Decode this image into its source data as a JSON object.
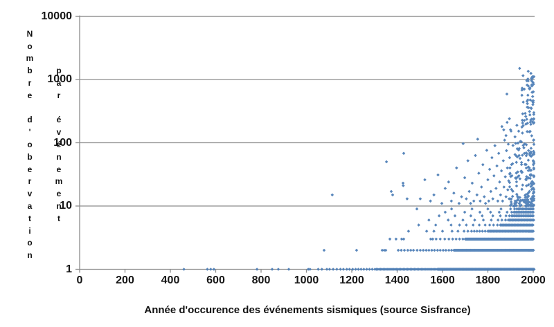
{
  "chart_data": {
    "type": "scatter",
    "title": "",
    "xlabel": "Année d'occurence des événements sismiques (source Sisfrance)",
    "ylabel": "Nombre d'obervation par événement",
    "ylabel_columns": [
      "Nombre d'obervation",
      "par événement"
    ],
    "x_ticks": [
      0,
      200,
      400,
      600,
      800,
      1000,
      1200,
      1400,
      1600,
      1800,
      2000
    ],
    "y_ticks": [
      1,
      10,
      100,
      1000,
      10000
    ],
    "xlim": [
      0,
      2000
    ],
    "ylim": [
      1,
      10000
    ],
    "y_scale": "log10",
    "grid": "horizontal",
    "legend": "none",
    "marker": {
      "shape": "diamond",
      "size": 4.6
    },
    "marker_color": "#4a7cb5",
    "grid_color": "#8c8c8c",
    "axis_color": "#8c8c8c",
    "text_color": "#151515",
    "integer_rows": [
      {
        "value": 1,
        "sparse": [
          460,
          563,
          578,
          592,
          782,
          849,
          876,
          922,
          1008,
          1016,
          1052,
          1068,
          1090,
          1102,
          1118,
          1134,
          1150,
          1163,
          1178,
          1190,
          1204,
          1217,
          1229,
          1241,
          1253,
          1266,
          1278,
          1290,
          1302
        ],
        "dense": [
          {
            "from": 1308,
            "to": 1578,
            "step": 6
          },
          {
            "from": 1580,
            "to": 2004,
            "step": 2
          }
        ]
      },
      {
        "value": 2,
        "sparse": [
          1078,
          1221,
          1334,
          1343,
          1350,
          1405,
          1418,
          1432,
          1447,
          1460,
          1472,
          1488,
          1502,
          1515,
          1528,
          1540,
          1553,
          1565,
          1578,
          1590,
          1603,
          1615,
          1628,
          1640
        ],
        "dense": [
          {
            "from": 1650,
            "to": 2002,
            "step": 3
          }
        ]
      },
      {
        "value": 3,
        "sparse": [
          1368,
          1395,
          1420,
          1429,
          1548,
          1557,
          1572,
          1590,
          1610,
          1628,
          1645,
          1660,
          1675,
          1690
        ],
        "dense": [
          {
            "from": 1700,
            "to": 2002,
            "step": 3
          }
        ]
      },
      {
        "value": 4,
        "sparse": [
          1450,
          1530,
          1562,
          1600,
          1642,
          1668,
          1695,
          1712,
          1728,
          1740,
          1752,
          1764,
          1776,
          1788
        ],
        "dense": [
          {
            "from": 1800,
            "to": 2002,
            "step": 4
          }
        ]
      },
      {
        "value": 5,
        "sparse": [
          1495,
          1570,
          1638,
          1675,
          1705,
          1735,
          1762,
          1788,
          1808,
          1825,
          1842
        ],
        "dense": [
          {
            "from": 1855,
            "to": 2002,
            "step": 4
          }
        ]
      },
      {
        "value": 6,
        "sparse": [
          1540,
          1625,
          1690,
          1742,
          1780,
          1815,
          1845,
          1862,
          1878
        ],
        "dense": [
          {
            "from": 1890,
            "to": 2002,
            "step": 4
          }
        ]
      },
      {
        "value": 7,
        "sparse": [
          1585,
          1655,
          1725,
          1775,
          1822,
          1855,
          1880,
          1895
        ],
        "dense": [
          {
            "from": 1905,
            "to": 2002,
            "step": 5
          }
        ]
      },
      {
        "value": 8,
        "sparse": [
          1612,
          1698,
          1765,
          1812,
          1850,
          1885,
          1905
        ],
        "dense": [
          {
            "from": 1915,
            "to": 2002,
            "step": 5
          }
        ]
      },
      {
        "value": 9,
        "sparse": [
          1487,
          1640,
          1730,
          1800,
          1858,
          1900,
          1918
        ],
        "dense": [
          {
            "from": 1928,
            "to": 2000,
            "step": 6
          }
        ]
      }
    ],
    "scatter_points": [
      [
        1114,
        15
      ],
      [
        1353,
        50
      ],
      [
        1374,
        17
      ],
      [
        1380,
        15
      ],
      [
        1426,
        23
      ],
      [
        1427,
        21
      ],
      [
        1429,
        68
      ],
      [
        1444,
        13
      ],
      [
        1502,
        13
      ],
      [
        1522,
        26
      ],
      [
        1547,
        12
      ],
      [
        1562,
        15
      ],
      [
        1580,
        31
      ],
      [
        1597,
        11
      ],
      [
        1612,
        19
      ],
      [
        1627,
        24
      ],
      [
        1639,
        12
      ],
      [
        1650,
        16
      ],
      [
        1662,
        40
      ],
      [
        1673,
        11
      ],
      [
        1684,
        14
      ],
      [
        1691,
        97
      ],
      [
        1698,
        28
      ],
      [
        1705,
        13
      ],
      [
        1712,
        52
      ],
      [
        1718,
        17
      ],
      [
        1724,
        11
      ],
      [
        1731,
        23
      ],
      [
        1738,
        12
      ],
      [
        1745,
        63
      ],
      [
        1752,
        15
      ],
      [
        1755,
        114
      ],
      [
        1760,
        33
      ],
      [
        1766,
        12
      ],
      [
        1772,
        20
      ],
      [
        1778,
        45
      ],
      [
        1784,
        14
      ],
      [
        1790,
        11
      ],
      [
        1795,
        76
      ],
      [
        1800,
        26
      ],
      [
        1804,
        12
      ],
      [
        1808,
        38
      ],
      [
        1813,
        17
      ],
      [
        1818,
        58
      ],
      [
        1822,
        13
      ],
      [
        1827,
        30
      ],
      [
        1831,
        90
      ],
      [
        1836,
        19
      ],
      [
        1840,
        43
      ],
      [
        1844,
        12
      ],
      [
        1848,
        68
      ],
      [
        1852,
        24
      ],
      [
        1856,
        15
      ],
      [
        1860,
        36
      ],
      [
        1862,
        180
      ],
      [
        1865,
        12
      ],
      [
        1868,
        52
      ],
      [
        1870,
        160
      ],
      [
        1871,
        20
      ],
      [
        1874,
        110
      ],
      [
        1877,
        29
      ],
      [
        1880,
        14
      ],
      [
        1880,
        130
      ],
      [
        1882,
        75
      ],
      [
        1884,
        590
      ],
      [
        1885,
        210
      ],
      [
        1886,
        40
      ],
      [
        1888,
        18
      ],
      [
        1890,
        95
      ],
      [
        1892,
        25
      ],
      [
        1894,
        13
      ],
      [
        1895,
        240
      ],
      [
        1896,
        58
      ],
      [
        1898,
        33
      ],
      [
        1940,
        1500
      ],
      [
        1978,
        1350
      ],
      [
        1955,
        1150
      ],
      [
        1990,
        1250
      ],
      [
        1996,
        1100
      ],
      [
        1999,
        900
      ],
      [
        1993,
        800
      ]
    ],
    "dense_cloud": {
      "seed": 42,
      "n": 260,
      "years": [
        1896,
        2003
      ],
      "log10_values": [
        1.0,
        3.05
      ],
      "year_bias": 2,
      "value_bias": 2
    }
  }
}
